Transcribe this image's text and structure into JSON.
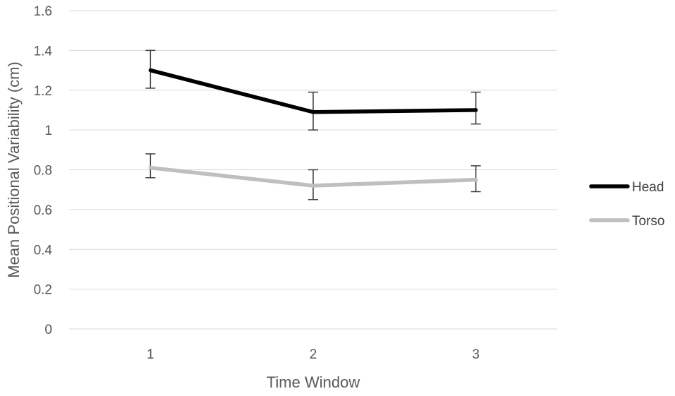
{
  "chart_data": {
    "type": "line",
    "title": "",
    "xlabel": "Time Window",
    "ylabel": "Mean Positional Variability (cm)",
    "categories": [
      "1",
      "2",
      "3"
    ],
    "ylim": [
      0,
      1.6
    ],
    "yticks": [
      "0",
      "0.2",
      "0.4",
      "0.6",
      "0.8",
      "1",
      "1.2",
      "1.4",
      "1.6"
    ],
    "grid": true,
    "legend_position": "right",
    "series": [
      {
        "name": "Head",
        "color": "#000000",
        "values": [
          1.3,
          1.09,
          1.1
        ],
        "error_low": [
          1.21,
          1.0,
          1.03
        ],
        "error_high": [
          1.4,
          1.19,
          1.19
        ]
      },
      {
        "name": "Torso",
        "color": "#bfbfbf",
        "values": [
          0.81,
          0.72,
          0.75
        ],
        "error_low": [
          0.76,
          0.65,
          0.69
        ],
        "error_high": [
          0.88,
          0.8,
          0.82
        ]
      }
    ]
  }
}
